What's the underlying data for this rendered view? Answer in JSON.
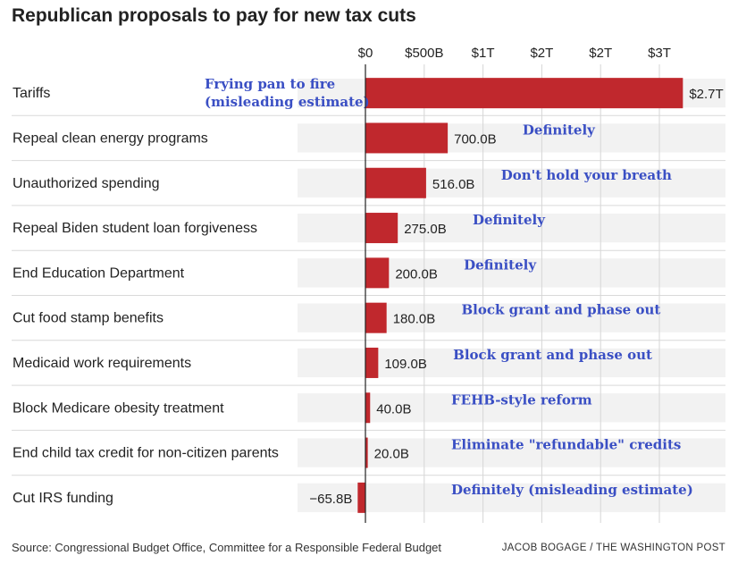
{
  "title": "Republican proposals to pay for new tax cuts",
  "source": "Source: Congressional Budget Office, Committee for a Responsible Federal Budget",
  "credit": "JACOB BOGAGE / THE WASHINGTON POST",
  "colors": {
    "bar": "#c0282d",
    "row_bg": "#f2f2f2",
    "annotation": "#3a4fc4",
    "gridline": "#d6d6d6"
  },
  "chart_data": {
    "type": "bar",
    "orientation": "horizontal",
    "title": "Republican proposals to pay for new tax cuts",
    "xlabel": "",
    "ylabel": "",
    "xlim": [
      -0.1,
      3.0
    ],
    "x_ticks": [
      0,
      0.5,
      1.0,
      1.5,
      2.0,
      2.5
    ],
    "x_tick_labels": [
      "$0",
      "$500B",
      "$1T",
      "$2T",
      "$2T",
      "$3T"
    ],
    "grid": true,
    "categories": [
      "Tariffs",
      "Repeal clean energy programs",
      "Unauthorized spending",
      "Repeal Biden student loan forgiveness",
      "End Education Department",
      "Cut food stamp benefits",
      "Medicaid work requirements",
      "Block Medicare obesity treatment",
      "End child tax credit for non-citizen parents",
      "Cut IRS funding"
    ],
    "values": [
      2.7,
      0.7,
      0.516,
      0.275,
      0.2,
      0.18,
      0.109,
      0.04,
      0.02,
      -0.0658
    ],
    "value_labels": [
      "$2.7T",
      "700.0B",
      "516.0B",
      "275.0B",
      "200.0B",
      "180.0B",
      "109.0B",
      "40.0B",
      "20.0B",
      "−65.8B"
    ],
    "annotations": [
      [
        "Frying pan to fire",
        "(misleading estimate)"
      ],
      [
        "Definitely"
      ],
      [
        "Don't hold your breath"
      ],
      [
        "Definitely"
      ],
      [
        "Definitely"
      ],
      [
        "Block grant and phase out"
      ],
      [
        "Block grant and phase out"
      ],
      [
        "FEHB-style reform"
      ],
      [
        "Eliminate \"refundable\" credits"
      ],
      [
        "Definitely  (misleading estimate)"
      ]
    ]
  }
}
